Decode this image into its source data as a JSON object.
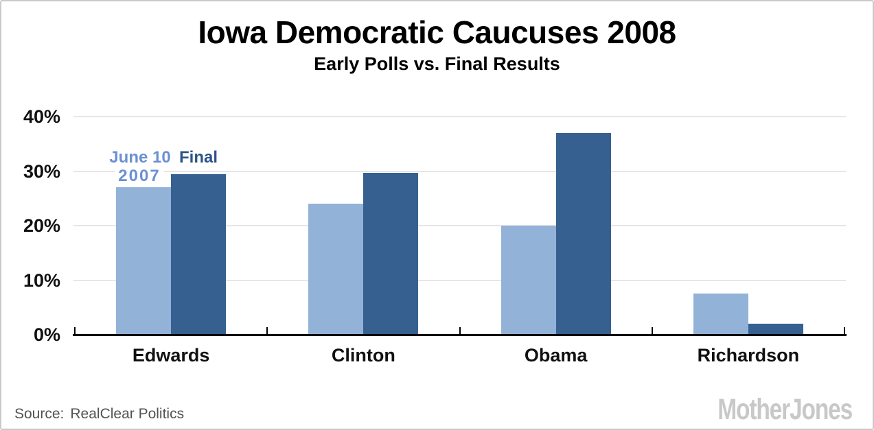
{
  "header": {
    "title": "Iowa Democratic Caucuses 2008",
    "subtitle": "Early Polls vs. Final Results"
  },
  "footer": {
    "source_label": "Source:",
    "source_value": "RealClear Politics",
    "brand": "MotherJones"
  },
  "chart_data": {
    "type": "bar",
    "categories": [
      "Edwards",
      "Clinton",
      "Obama",
      "Richardson"
    ],
    "series": [
      {
        "name": "June 10 2007",
        "color": "#93B2D8",
        "values": [
          27,
          24,
          20,
          7.5
        ]
      },
      {
        "name": "Final",
        "color": "#35608F",
        "values": [
          29.5,
          29.7,
          37,
          2
        ]
      }
    ],
    "yticks": [
      0,
      10,
      20,
      30,
      40
    ],
    "ytick_suffix": "%",
    "ylim": [
      0,
      42
    ],
    "grid": true,
    "legend": {
      "position": "above first group",
      "series1_line1": "June 10",
      "series1_line2": "2007",
      "series1_color": "#6B90D2",
      "series2_label": "Final",
      "series2_color": "#2D5486"
    }
  },
  "style": {
    "grid_color": "#E6E6E6",
    "axis_color": "#000000",
    "text_color": "#111111",
    "source_color": "#525252",
    "logo_color": "#C8C8C8"
  }
}
